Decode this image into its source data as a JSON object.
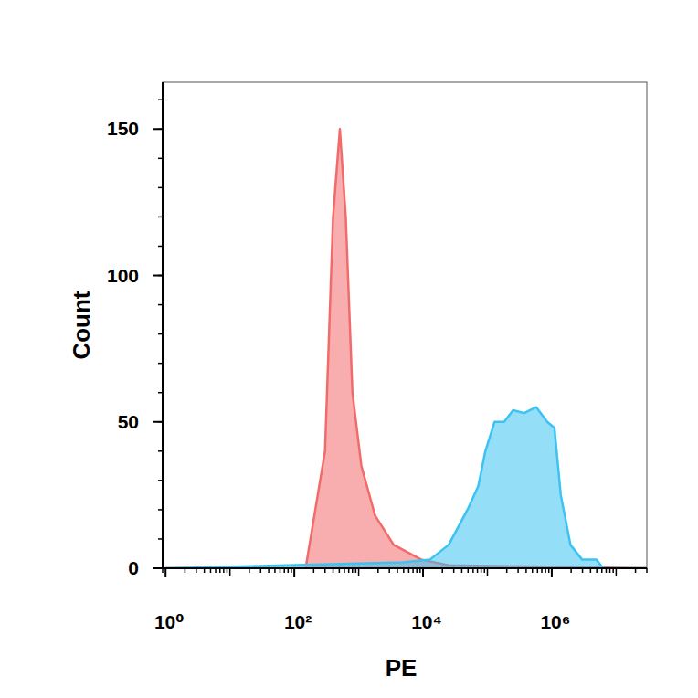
{
  "chart_data": {
    "type": "area",
    "xlabel": "PE",
    "ylabel": "Count",
    "log": "x",
    "xlim": [
      0.9,
      30000000
    ],
    "ylim": [
      0,
      166
    ],
    "xticks": [
      {
        "value": 1,
        "label": "10⁰"
      },
      {
        "value": 100,
        "label": "10²"
      },
      {
        "value": 10000,
        "label": "10⁴"
      },
      {
        "value": 1000000,
        "label": "10⁶"
      }
    ],
    "yticks": [
      0,
      50,
      100,
      150
    ],
    "series": [
      {
        "color": "#f26b6b",
        "x": [
          1,
          150,
          300,
          400,
          510,
          630,
          800,
          1100,
          1800,
          3500,
          9300,
          25000,
          30000000
        ],
        "values": [
          0,
          0,
          40,
          120,
          150,
          120,
          60,
          35,
          18,
          8,
          3,
          1,
          0
        ]
      },
      {
        "color": "#3cc3f2",
        "x": [
          1,
          4900,
          12900,
          25000,
          49000,
          72000,
          93000,
          129000,
          182000,
          251000,
          372000,
          575000,
          851000,
          1100000,
          1380000,
          1950000,
          2950000,
          4900000,
          6300000,
          30000000
        ],
        "values": [
          0,
          2,
          3,
          8,
          20,
          28,
          40,
          50,
          50,
          54,
          53,
          55,
          50,
          48,
          25,
          8,
          3,
          3,
          0,
          0
        ]
      }
    ]
  }
}
